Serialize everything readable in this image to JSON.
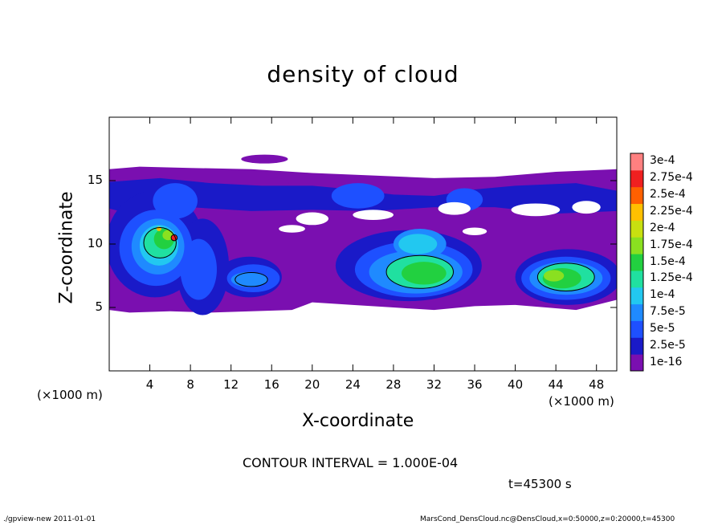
{
  "chart_data": {
    "type": "heatmap",
    "title": "density of cloud",
    "xlabel": "X-coordinate",
    "ylabel": "Z-coordinate",
    "x_unit_left": "(×1000 m)",
    "x_unit_right": "(×1000 m)",
    "xlim": [
      0,
      50
    ],
    "ylim": [
      0,
      20
    ],
    "x_ticks": [
      4,
      8,
      12,
      16,
      20,
      24,
      28,
      32,
      36,
      40,
      44,
      48
    ],
    "x_tick_labels": [
      "4",
      "8",
      "12",
      "16",
      "20",
      "24",
      "28",
      "32",
      "36",
      "40",
      "44",
      "48"
    ],
    "y_ticks": [
      5,
      10,
      15
    ],
    "y_tick_labels": [
      "5",
      "10",
      "15"
    ],
    "colorbar": {
      "levels": [
        "1e-16",
        "2.5e-5",
        "5e-5",
        "7.5e-5",
        "1e-4",
        "1.25e-4",
        "1.5e-4",
        "1.75e-4",
        "2e-4",
        "2.25e-4",
        "2.5e-4",
        "2.75e-4",
        "3e-4"
      ],
      "colors": [
        "#7a0fb0",
        "#1a1ac8",
        "#1e50ff",
        "#1f8aff",
        "#22c8f0",
        "#20e0a0",
        "#22d040",
        "#8ae020",
        "#c8e010",
        "#ffc000",
        "#ff6000",
        "#f02020",
        "#ff8080"
      ]
    },
    "contour_interval": "CONTOUR INTERVAL = 1.000E-04",
    "time_label": "t=45300 s"
  },
  "footer": {
    "left": "./gpview-new   2011-01-01",
    "right": "MarsCond_DensCloud.nc@DensCloud,x=0:50000,z=0:20000,t=45300"
  }
}
